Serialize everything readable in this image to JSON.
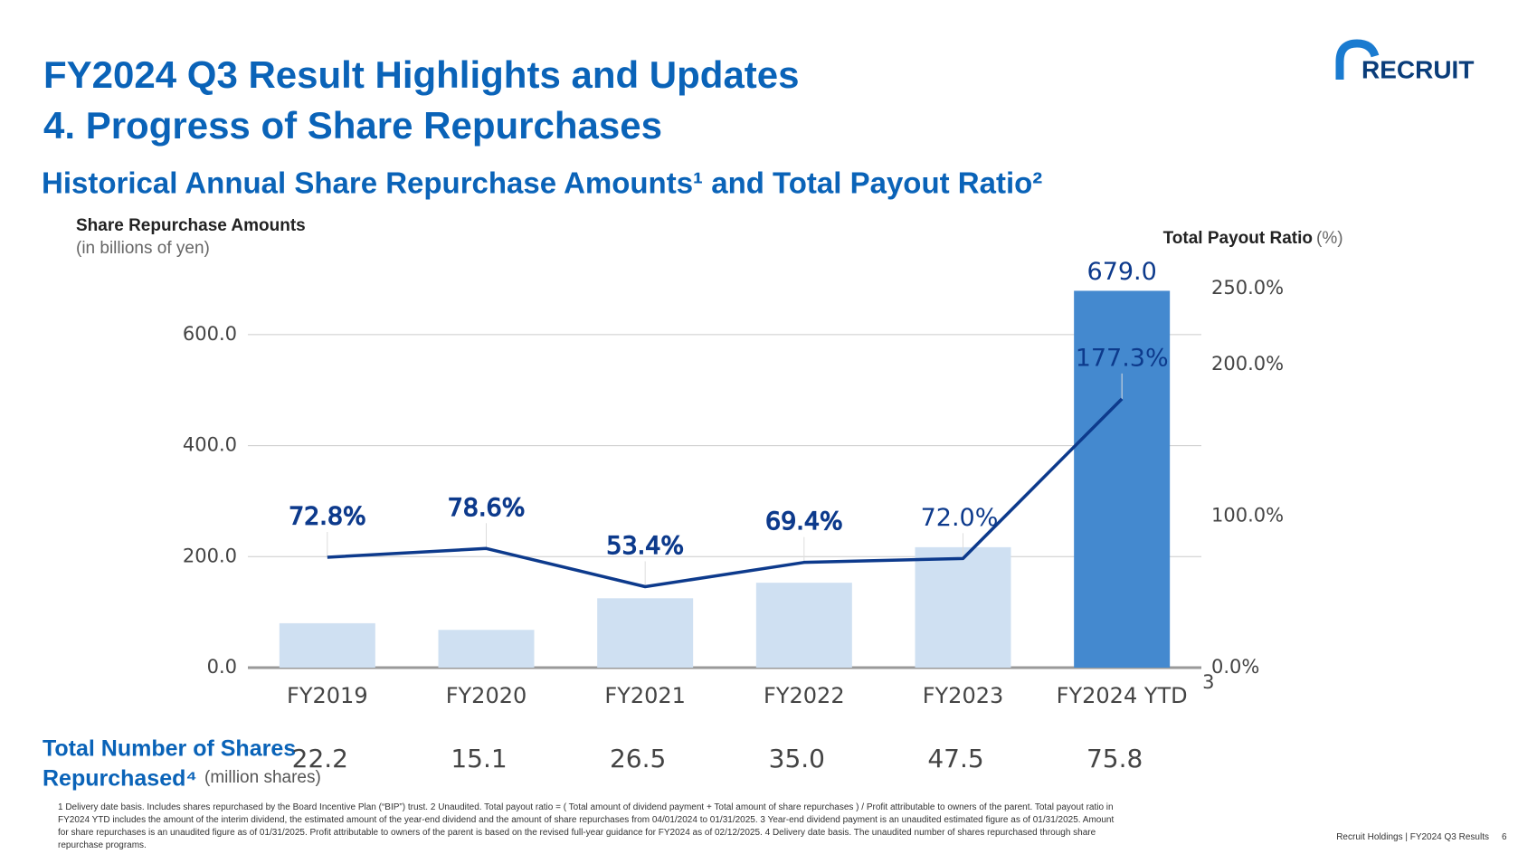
{
  "header": {
    "title": "FY2024 Q3 Result Highlights and Updates",
    "subtitle": "4. Progress of Share Repurchases",
    "logo": "RECRUIT"
  },
  "chart_data": {
    "type": "bar",
    "title": "Historical Annual Share Repurchase Amounts¹ and Total Payout Ratio²",
    "y_label": "Share Repurchase Amounts",
    "y_unit": "(in billions of yen)",
    "y2_label": "Total Payout Ratio",
    "y2_unit": "(%)",
    "categories": [
      "FY2019",
      "FY2020",
      "FY2021",
      "FY2022",
      "FY2023",
      "FY2024 YTD"
    ],
    "category_notes": [
      null,
      null,
      null,
      null,
      null,
      "3"
    ],
    "ylim": [
      0,
      683
    ],
    "yticks": [
      {
        "value": 0,
        "label": "0.0"
      },
      {
        "value": 200,
        "label": "200.0"
      },
      {
        "value": 400,
        "label": "400.0"
      },
      {
        "value": 600,
        "label": "600.0"
      }
    ],
    "y2lim": [
      0,
      250
    ],
    "y2ticks": [
      {
        "value": 0,
        "label": "0.0%"
      },
      {
        "value": 100,
        "label": "100.0%"
      },
      {
        "value": 200,
        "label": "200.0%"
      },
      {
        "value": 250,
        "label": "250.0%"
      }
    ],
    "grid": true,
    "series": [
      {
        "type": "bar",
        "values": [
          80,
          68,
          125,
          153,
          217,
          679
        ],
        "value_labels": [
          null,
          null,
          null,
          null,
          null,
          "679.0"
        ],
        "colors": [
          "#cfe0f2",
          "#cfe0f2",
          "#cfe0f2",
          "#cfe0f2",
          "#cfe0f2",
          "#4489cf"
        ]
      },
      {
        "type": "line",
        "axis": "y2",
        "color": "#0d3a8c",
        "values": [
          72.8,
          78.6,
          53.4,
          69.4,
          72.0,
          177.3
        ],
        "value_labels": [
          "72.8%",
          "78.6%",
          "53.4%",
          "69.4%",
          "72.0%",
          "177.3%"
        ]
      }
    ],
    "shares": {
      "label": "Total Number of Shares",
      "label2": "Repurchased⁴",
      "unit": "(million shares)",
      "values": [
        22.2,
        15.1,
        26.5,
        35.0,
        47.5,
        75.8
      ],
      "value_labels": [
        "22.2",
        "15.1",
        "26.5",
        "35.0",
        "47.5",
        "75.8"
      ]
    }
  },
  "footnotes": [
    "1 Delivery date basis. Includes shares repurchased by the Board Incentive Plan (“BIP”) trust. 2 Unaudited. Total payout ratio = ( Total amount of dividend payment + Total amount of share repurchases ) / Profit attributable to owners of the parent. Total payout ratio in",
    "FY2024 YTD includes the amount of the interim dividend, the estimated amount of the year-end dividend and the amount of share repurchases from 04/01/2024 to 01/31/2025. 3 Year-end dividend payment is an unaudited estimated figure as of 01/31/2025. Amount",
    "for share repurchases is an unaudited figure as of 01/31/2025. Profit attributable to owners of the parent is based on the revised full-year guidance for FY2024 as of 02/12/2025. 4 Delivery date basis. The unaudited number of shares repurchased through share",
    "repurchase programs."
  ],
  "footer": {
    "text": "Recruit Holdings | FY2024 Q3 Results",
    "page": "6"
  }
}
